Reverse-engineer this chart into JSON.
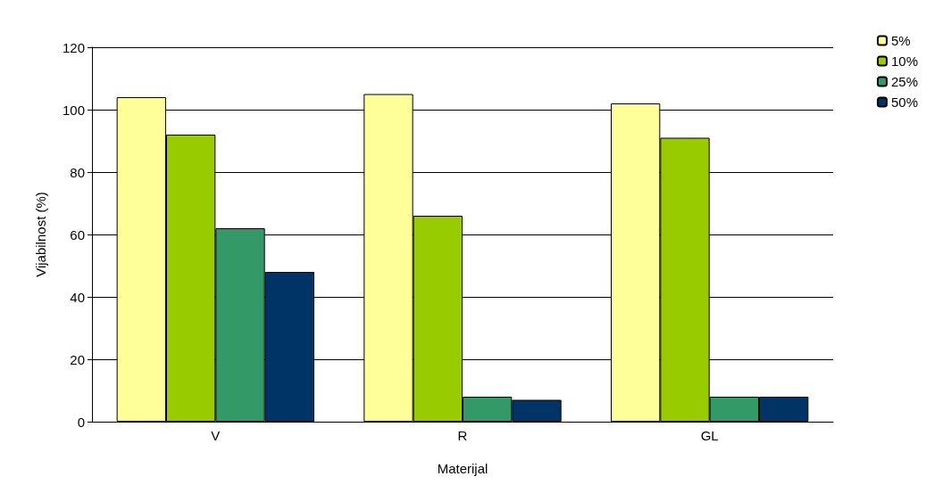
{
  "chart_data": {
    "type": "bar",
    "xlabel": "Materijal",
    "ylabel": "Vijabilnost (%)",
    "categories": [
      "V",
      "R",
      "GL"
    ],
    "series": [
      {
        "name": "5%",
        "color": "#ffff99",
        "values": [
          104,
          105,
          102
        ]
      },
      {
        "name": "10%",
        "color": "#99cc00",
        "values": [
          92,
          66,
          91
        ]
      },
      {
        "name": "25%",
        "color": "#339966",
        "values": [
          62,
          8,
          8
        ]
      },
      {
        "name": "50%",
        "color": "#003366",
        "values": [
          48,
          7,
          8
        ]
      }
    ],
    "ylim": [
      0,
      120
    ],
    "yticks": [
      0,
      20,
      40,
      60,
      80,
      100,
      120
    ],
    "grid": "y",
    "legend": "top right"
  }
}
